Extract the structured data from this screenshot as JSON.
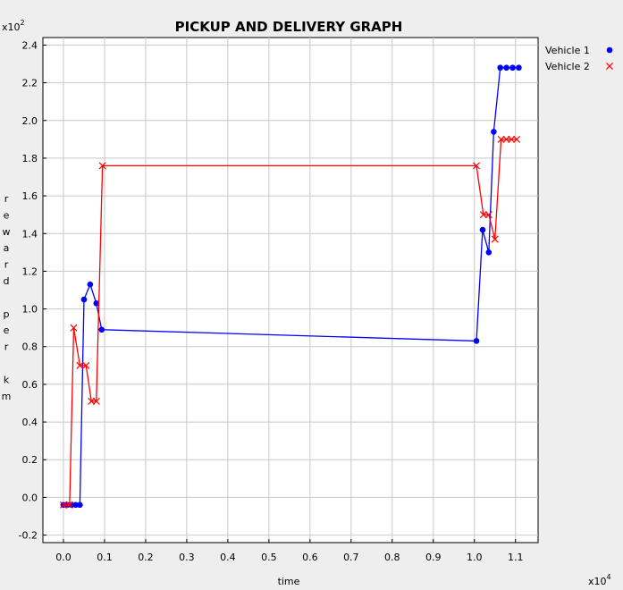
{
  "chart_data": {
    "type": "line",
    "title": "PICKUP AND DELIVERY GRAPH",
    "xlabel": "time",
    "ylabel": "reward per km",
    "x_multiplier": "x10",
    "x_multiplier_exp": "4",
    "y_multiplier": "x10",
    "y_multiplier_exp": "2",
    "xlim": [
      -0.05,
      1.155
    ],
    "ylim": [
      -0.24,
      2.44
    ],
    "x_ticks": [
      0.0,
      0.1,
      0.2,
      0.3,
      0.4,
      0.5,
      0.6,
      0.7,
      0.8,
      0.9,
      1.0,
      1.1
    ],
    "x_tick_labels": [
      "0.0",
      "0.1",
      "0.2",
      "0.3",
      "0.4",
      "0.5",
      "0.6",
      "0.7",
      "0.8",
      "0.9",
      "1.0",
      "1.1"
    ],
    "y_ticks": [
      -0.2,
      0.0,
      0.2,
      0.4,
      0.6,
      0.8,
      1.0,
      1.2,
      1.4,
      1.6,
      1.8,
      2.0,
      2.2,
      2.4
    ],
    "y_tick_labels": [
      "-0.2",
      "0.0",
      "0.2",
      "0.4",
      "0.6",
      "0.8",
      "1.0",
      "1.2",
      "1.4",
      "1.6",
      "1.8",
      "2.0",
      "2.2",
      "2.4"
    ],
    "grid": true,
    "legend_position": "top-right",
    "series": [
      {
        "name": "Vehicle 1",
        "color": "#0000ff",
        "marker": "circle",
        "points": [
          [
            0.0,
            -0.04
          ],
          [
            0.01,
            -0.04
          ],
          [
            0.02,
            -0.04
          ],
          [
            0.03,
            -0.04
          ],
          [
            0.04,
            -0.04
          ],
          [
            0.05,
            1.05
          ],
          [
            0.065,
            1.13
          ],
          [
            0.08,
            1.03
          ],
          [
            0.093,
            0.89
          ],
          [
            1.005,
            0.83
          ],
          [
            1.02,
            1.42
          ],
          [
            1.035,
            1.3
          ],
          [
            1.047,
            1.94
          ],
          [
            1.063,
            2.28
          ],
          [
            1.078,
            2.28
          ],
          [
            1.093,
            2.28
          ],
          [
            1.108,
            2.28
          ]
        ]
      },
      {
        "name": "Vehicle 2",
        "color": "#ff0000",
        "marker": "x",
        "points": [
          [
            0.0,
            -0.04
          ],
          [
            0.015,
            -0.04
          ],
          [
            0.025,
            0.9
          ],
          [
            0.04,
            0.7
          ],
          [
            0.055,
            0.7
          ],
          [
            0.068,
            0.51
          ],
          [
            0.08,
            0.51
          ],
          [
            0.095,
            1.76
          ],
          [
            1.005,
            1.76
          ],
          [
            1.022,
            1.5
          ],
          [
            1.035,
            1.5
          ],
          [
            1.05,
            1.37
          ],
          [
            1.065,
            1.9
          ],
          [
            1.078,
            1.9
          ],
          [
            1.09,
            1.9
          ],
          [
            1.103,
            1.9
          ]
        ]
      }
    ]
  }
}
